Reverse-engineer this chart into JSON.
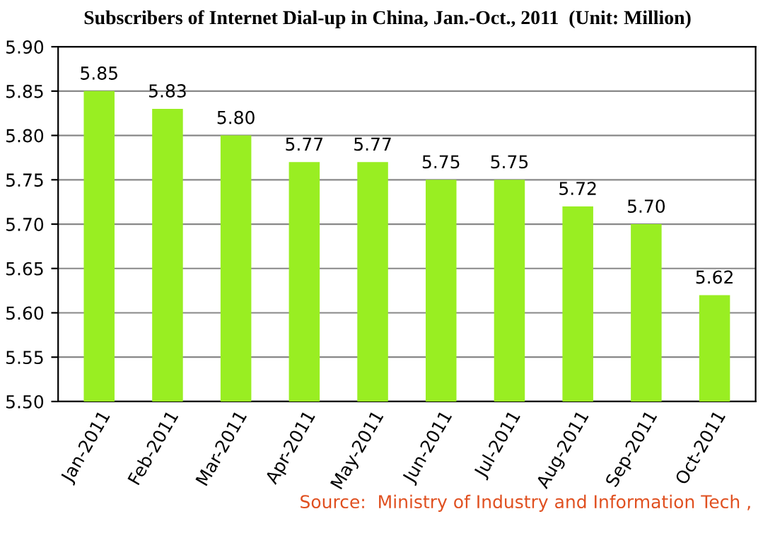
{
  "chart_data": {
    "type": "bar",
    "title": "Subscribers of Internet Dial-up in China, Jan.-Oct., 2011  (Unit: Million)",
    "categories": [
      "Jan-2011",
      "Feb-2011",
      "Mar-2011",
      "Apr-2011",
      "May-2011",
      "Jun-2011",
      "Jul-2011",
      "Aug-2011",
      "Sep-2011",
      "Oct-2011"
    ],
    "values": [
      5.85,
      5.83,
      5.8,
      5.77,
      5.77,
      5.75,
      5.75,
      5.72,
      5.7,
      5.62
    ],
    "value_labels": [
      "5.85",
      "5.83",
      "5.80",
      "5.77",
      "5.77",
      "5.75",
      "5.75",
      "5.72",
      "5.70",
      "5.62"
    ],
    "color": "#99ee22",
    "ylim": [
      5.5,
      5.9
    ],
    "yticks": [
      {
        "value": 5.5,
        "label": "5.50"
      },
      {
        "value": 5.55,
        "label": "5.55"
      },
      {
        "value": 5.6,
        "label": "5.60"
      },
      {
        "value": 5.65,
        "label": "5.65"
      },
      {
        "value": 5.7,
        "label": "5.70"
      },
      {
        "value": 5.75,
        "label": "5.75"
      },
      {
        "value": 5.8,
        "label": "5.80"
      },
      {
        "value": 5.85,
        "label": "5.85"
      },
      {
        "value": 5.9,
        "label": "5.90"
      }
    ],
    "grid": "y",
    "annotations": [
      "Source:  Ministry of Industry and Information Tech ,"
    ]
  }
}
